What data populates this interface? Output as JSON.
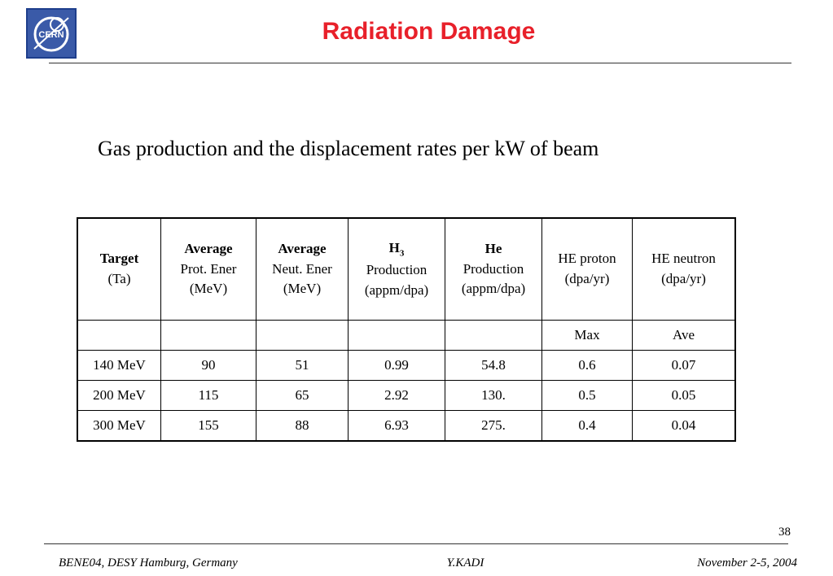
{
  "header": {
    "title": "Radiation Damage",
    "logo_text": "CERN"
  },
  "subtitle": "Gas production and the displacement rates per kW of beam",
  "table": {
    "headers": [
      {
        "bold": "Target",
        "lines": [
          "(Ta)"
        ]
      },
      {
        "bold": "Average",
        "lines": [
          "Prot. Ener",
          "(MeV)"
        ]
      },
      {
        "bold": "Average",
        "lines": [
          "Neut. Ener",
          "(MeV)"
        ]
      },
      {
        "bold": "H",
        "sub": "3",
        "lines": [
          "Production",
          "(appm/dpa)"
        ]
      },
      {
        "bold": "He",
        "lines": [
          "Production",
          "(appm/dpa)"
        ]
      },
      {
        "bold": "",
        "lines": [
          "HE proton",
          "(dpa/yr)"
        ]
      },
      {
        "bold": "",
        "lines": [
          "HE neutron",
          "(dpa/yr)"
        ]
      }
    ],
    "subheader": [
      "",
      "",
      "",
      "",
      "",
      "Max",
      "Ave"
    ],
    "rows": [
      [
        "140 MeV",
        "90",
        "51",
        "0.99",
        "54.8",
        "0.6",
        "0.07"
      ],
      [
        "200 MeV",
        "115",
        "65",
        "2.92",
        "130.",
        "0.5",
        "0.05"
      ],
      [
        "300 MeV",
        "155",
        "88",
        "6.93",
        "275.",
        "0.4",
        "0.04"
      ]
    ]
  },
  "footer": {
    "page_number": "38",
    "left": "BENE04, DESY Hamburg, Germany",
    "center": "Y.KADI",
    "right": "November 2-5, 2004"
  },
  "colors": {
    "title": "#e8202a",
    "logo_bg": "#3a5aa8"
  }
}
